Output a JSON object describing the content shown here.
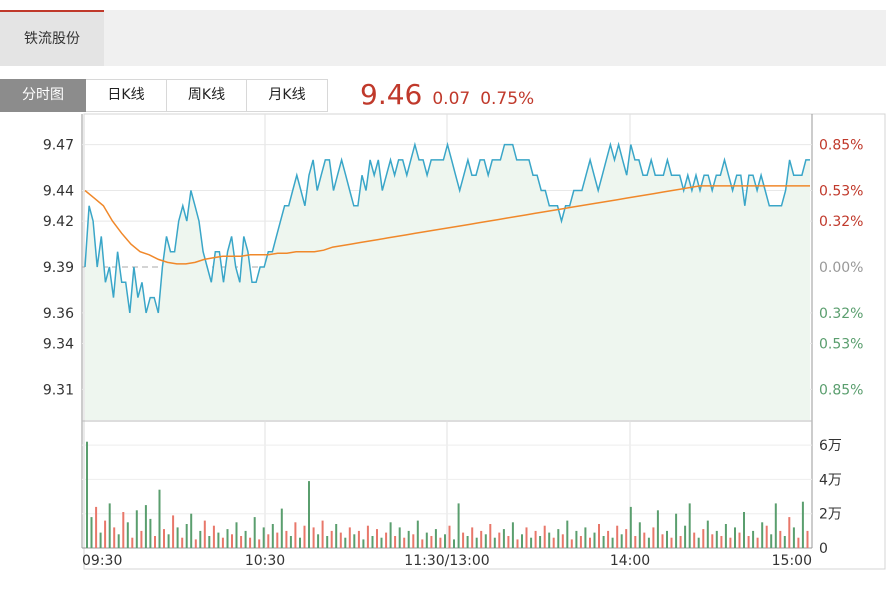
{
  "header": {
    "stock_name": "铁流股份"
  },
  "tabs": [
    {
      "label": "分时图",
      "active": true
    },
    {
      "label": "日K线",
      "active": false
    },
    {
      "label": "周K线",
      "active": false
    },
    {
      "label": "月K线",
      "active": false
    }
  ],
  "quote": {
    "price": "9.46",
    "change": "0.07",
    "change_pct": "0.75%"
  },
  "colors": {
    "up": "#c0392b",
    "down": "#5a9e6e",
    "price_line": "#3aa6c8",
    "avg_line": "#f0882a",
    "area_fill": "#eef6ef"
  },
  "chart_data": {
    "type": "line",
    "prev_close": 9.39,
    "ylim": [
      9.29,
      9.49
    ],
    "y_ticks_left": [
      "9.47",
      "9.44",
      "9.42",
      "9.39",
      "9.36",
      "9.34",
      "9.31"
    ],
    "y_ticks_right": [
      "0.85%",
      "0.53%",
      "0.32%",
      "0.00%",
      "0.32%",
      "0.53%",
      "0.85%"
    ],
    "x_ticks": [
      "09:30",
      "10:30",
      "11:30/13:00",
      "14:00",
      "15:00"
    ],
    "volume_ticks": [
      "6万",
      "4万",
      "2万",
      "0"
    ],
    "volume_max": 7,
    "series": [
      {
        "values": [
          9.39,
          9.43,
          9.42,
          9.39,
          9.41,
          9.38,
          9.39,
          9.37,
          9.4,
          9.38,
          9.38,
          9.36,
          9.39,
          9.37,
          9.38,
          9.36,
          9.37,
          9.37,
          9.36,
          9.39,
          9.41,
          9.4,
          9.4,
          9.42,
          9.43,
          9.42,
          9.44,
          9.43,
          9.42,
          9.4,
          9.39,
          9.38,
          9.4,
          9.4,
          9.38,
          9.4,
          9.41,
          9.39,
          9.38,
          9.41,
          9.4,
          9.38,
          9.38,
          9.39,
          9.39,
          9.4,
          9.4,
          9.41,
          9.42,
          9.43,
          9.43,
          9.44,
          9.45,
          9.44,
          9.43,
          9.45,
          9.46,
          9.44,
          9.45,
          9.46,
          9.46,
          9.44,
          9.45,
          9.46,
          9.45,
          9.44,
          9.43,
          9.43,
          9.45,
          9.44,
          9.46,
          9.45,
          9.46,
          9.44,
          9.45,
          9.46,
          9.45,
          9.46,
          9.46,
          9.45,
          9.46,
          9.47,
          9.46,
          9.46,
          9.45,
          9.46,
          9.46,
          9.46,
          9.46,
          9.47,
          9.46,
          9.45,
          9.44,
          9.45,
          9.46,
          9.45,
          9.45,
          9.46,
          9.46,
          9.45,
          9.46,
          9.46,
          9.46,
          9.47,
          9.47,
          9.47,
          9.46,
          9.46,
          9.46,
          9.46,
          9.45,
          9.45,
          9.44,
          9.44,
          9.43,
          9.43,
          9.43,
          9.42,
          9.43,
          9.43,
          9.44,
          9.44,
          9.44,
          9.45,
          9.46,
          9.45,
          9.44,
          9.45,
          9.46,
          9.47,
          9.46,
          9.47,
          9.46,
          9.45,
          9.47,
          9.46,
          9.46,
          9.45,
          9.45,
          9.46,
          9.45,
          9.45,
          9.45,
          9.46,
          9.45,
          9.45,
          9.45,
          9.44,
          9.45,
          9.44,
          9.45,
          9.44,
          9.45,
          9.45,
          9.44,
          9.45,
          9.45,
          9.46,
          9.45,
          9.44,
          9.45,
          9.45,
          9.43,
          9.45,
          9.45,
          9.44,
          9.45,
          9.44,
          9.43,
          9.43,
          9.43,
          9.43,
          9.44,
          9.46,
          9.45,
          9.45,
          9.45,
          9.46,
          9.46
        ]
      },
      {
        "values": [
          9.44,
          9.435,
          9.43,
          9.42,
          9.412,
          9.405,
          9.4,
          9.398,
          9.395,
          9.393,
          9.392,
          9.392,
          9.393,
          9.395,
          9.396,
          9.397,
          9.397,
          9.397,
          9.398,
          9.398,
          9.398,
          9.399,
          9.399,
          9.4,
          9.4,
          9.4,
          9.401,
          9.403,
          9.404,
          9.405,
          9.406,
          9.407,
          9.408,
          9.409,
          9.41,
          9.411,
          9.412,
          9.413,
          9.414,
          9.415,
          9.416,
          9.417,
          9.418,
          9.419,
          9.42,
          9.421,
          9.422,
          9.423,
          9.424,
          9.425,
          9.426,
          9.427,
          9.428,
          9.429,
          9.43,
          9.431,
          9.432,
          9.433,
          9.434,
          9.435,
          9.436,
          9.437,
          9.438,
          9.439,
          9.44,
          9.441,
          9.442,
          9.443,
          9.443,
          9.443,
          9.443,
          9.443,
          9.443,
          9.443,
          9.443,
          9.443,
          9.443,
          9.443,
          9.443,
          9.443
        ]
      }
    ],
    "volume": [
      [
        6.2,
        1
      ],
      [
        1.8,
        1
      ],
      [
        2.4,
        0
      ],
      [
        0.9,
        1
      ],
      [
        1.6,
        0
      ],
      [
        2.6,
        1
      ],
      [
        1.2,
        0
      ],
      [
        0.8,
        1
      ],
      [
        2.1,
        0
      ],
      [
        1.5,
        1
      ],
      [
        0.6,
        0
      ],
      [
        2.2,
        1
      ],
      [
        1.0,
        0
      ],
      [
        2.5,
        1
      ],
      [
        1.7,
        1
      ],
      [
        0.7,
        0
      ],
      [
        3.4,
        1
      ],
      [
        1.1,
        0
      ],
      [
        0.8,
        1
      ],
      [
        1.9,
        0
      ],
      [
        1.2,
        1
      ],
      [
        0.6,
        0
      ],
      [
        1.4,
        1
      ],
      [
        2.0,
        1
      ],
      [
        0.5,
        0
      ],
      [
        1.0,
        1
      ],
      [
        1.6,
        0
      ],
      [
        0.7,
        1
      ],
      [
        1.3,
        0
      ],
      [
        0.9,
        1
      ],
      [
        0.6,
        0
      ],
      [
        1.1,
        1
      ],
      [
        0.8,
        0
      ],
      [
        1.5,
        1
      ],
      [
        0.7,
        0
      ],
      [
        1.0,
        1
      ],
      [
        0.6,
        0
      ],
      [
        1.8,
        1
      ],
      [
        0.5,
        0
      ],
      [
        1.2,
        1
      ],
      [
        0.8,
        0
      ],
      [
        1.4,
        1
      ],
      [
        0.9,
        0
      ],
      [
        2.3,
        1
      ],
      [
        1.0,
        0
      ],
      [
        0.7,
        1
      ],
      [
        1.5,
        0
      ],
      [
        0.6,
        1
      ],
      [
        1.3,
        0
      ],
      [
        3.9,
        1
      ],
      [
        1.2,
        0
      ],
      [
        0.8,
        1
      ],
      [
        1.6,
        0
      ],
      [
        0.7,
        1
      ],
      [
        1.0,
        0
      ],
      [
        1.4,
        1
      ],
      [
        0.9,
        0
      ],
      [
        0.6,
        1
      ],
      [
        1.2,
        0
      ],
      [
        0.8,
        1
      ],
      [
        1.0,
        0
      ],
      [
        0.5,
        1
      ],
      [
        1.3,
        0
      ],
      [
        0.7,
        1
      ],
      [
        1.1,
        0
      ],
      [
        0.6,
        1
      ],
      [
        0.9,
        0
      ],
      [
        1.5,
        1
      ],
      [
        0.7,
        0
      ],
      [
        1.2,
        1
      ],
      [
        0.6,
        0
      ],
      [
        1.0,
        1
      ],
      [
        0.8,
        0
      ],
      [
        1.6,
        1
      ],
      [
        0.5,
        0
      ],
      [
        0.9,
        1
      ],
      [
        0.7,
        0
      ],
      [
        1.1,
        1
      ],
      [
        0.6,
        0
      ],
      [
        0.8,
        1
      ],
      [
        1.3,
        0
      ],
      [
        0.5,
        1
      ],
      [
        2.6,
        1
      ],
      [
        0.9,
        0
      ],
      [
        0.7,
        1
      ],
      [
        1.2,
        0
      ],
      [
        0.6,
        1
      ],
      [
        1.0,
        0
      ],
      [
        0.8,
        1
      ],
      [
        1.4,
        0
      ],
      [
        0.6,
        1
      ],
      [
        0.9,
        0
      ],
      [
        1.1,
        1
      ],
      [
        0.7,
        0
      ],
      [
        1.5,
        1
      ],
      [
        0.5,
        0
      ],
      [
        0.8,
        1
      ],
      [
        1.2,
        0
      ],
      [
        0.6,
        1
      ],
      [
        1.0,
        0
      ],
      [
        0.7,
        1
      ],
      [
        1.3,
        0
      ],
      [
        0.9,
        1
      ],
      [
        0.6,
        0
      ],
      [
        1.1,
        1
      ],
      [
        0.8,
        0
      ],
      [
        1.6,
        1
      ],
      [
        0.5,
        0
      ],
      [
        1.0,
        1
      ],
      [
        0.7,
        0
      ],
      [
        1.2,
        1
      ],
      [
        0.6,
        0
      ],
      [
        0.9,
        1
      ],
      [
        1.4,
        0
      ],
      [
        0.7,
        1
      ],
      [
        1.0,
        0
      ],
      [
        0.6,
        1
      ],
      [
        1.3,
        0
      ],
      [
        0.8,
        1
      ],
      [
        1.1,
        0
      ],
      [
        2.4,
        1
      ],
      [
        0.7,
        0
      ],
      [
        1.5,
        1
      ],
      [
        0.9,
        0
      ],
      [
        0.6,
        1
      ],
      [
        1.2,
        0
      ],
      [
        2.2,
        1
      ],
      [
        0.8,
        0
      ],
      [
        1.0,
        1
      ],
      [
        0.6,
        0
      ],
      [
        2.0,
        1
      ],
      [
        0.7,
        0
      ],
      [
        1.3,
        1
      ],
      [
        2.6,
        1
      ],
      [
        0.9,
        0
      ],
      [
        0.6,
        1
      ],
      [
        1.1,
        0
      ],
      [
        1.6,
        1
      ],
      [
        0.8,
        0
      ],
      [
        1.0,
        1
      ],
      [
        0.7,
        0
      ],
      [
        1.4,
        1
      ],
      [
        0.6,
        0
      ],
      [
        1.2,
        1
      ],
      [
        0.9,
        0
      ],
      [
        2.1,
        1
      ],
      [
        0.7,
        0
      ],
      [
        1.0,
        1
      ],
      [
        0.6,
        0
      ],
      [
        1.5,
        1
      ],
      [
        1.3,
        0
      ],
      [
        0.8,
        1
      ],
      [
        2.6,
        1
      ],
      [
        1.0,
        0
      ],
      [
        0.7,
        1
      ],
      [
        1.8,
        0
      ],
      [
        1.2,
        1
      ],
      [
        0.6,
        0
      ],
      [
        2.7,
        1
      ],
      [
        1.0,
        0
      ]
    ]
  }
}
